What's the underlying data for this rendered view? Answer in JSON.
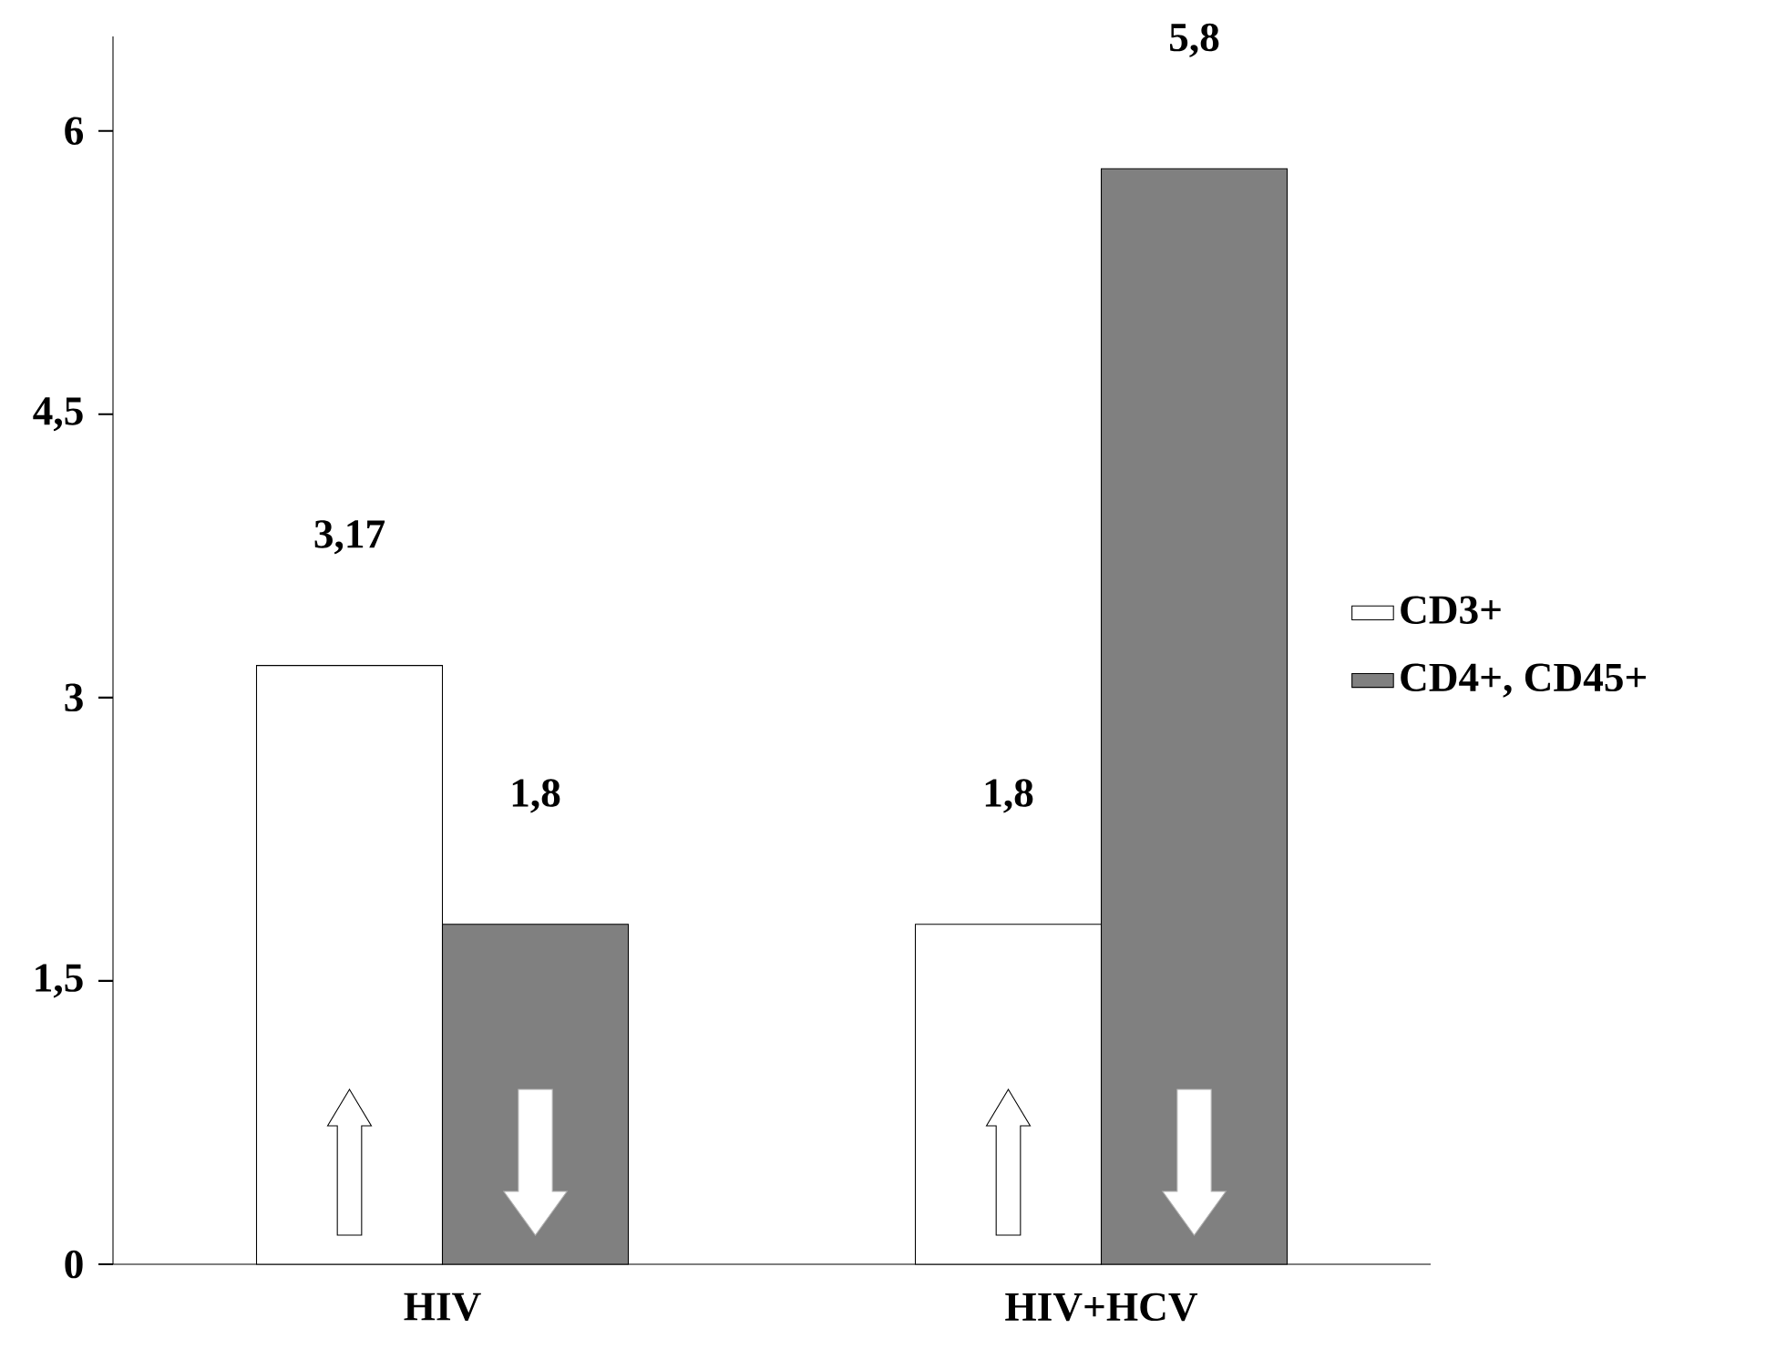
{
  "chart_data": {
    "type": "bar",
    "categories": [
      "HIV",
      "HIV+HCV"
    ],
    "series": [
      {
        "name": "CD3+",
        "color": "#ffffff",
        "values": [
          3.17,
          1.8
        ],
        "value_labels": [
          "3,17",
          "1,8"
        ]
      },
      {
        "name": "CD4+, CD45+",
        "color": "#808080",
        "values": [
          1.8,
          5.8
        ],
        "value_labels": [
          "1,8",
          "5,8"
        ]
      }
    ],
    "ylim": [
      0,
      6.5
    ],
    "yticks": [
      0,
      {
        "value": 1.5,
        "label": "1,5"
      },
      3,
      {
        "value": 4.5,
        "label": "4,5"
      },
      6
    ],
    "grid": false,
    "legend": "right"
  }
}
